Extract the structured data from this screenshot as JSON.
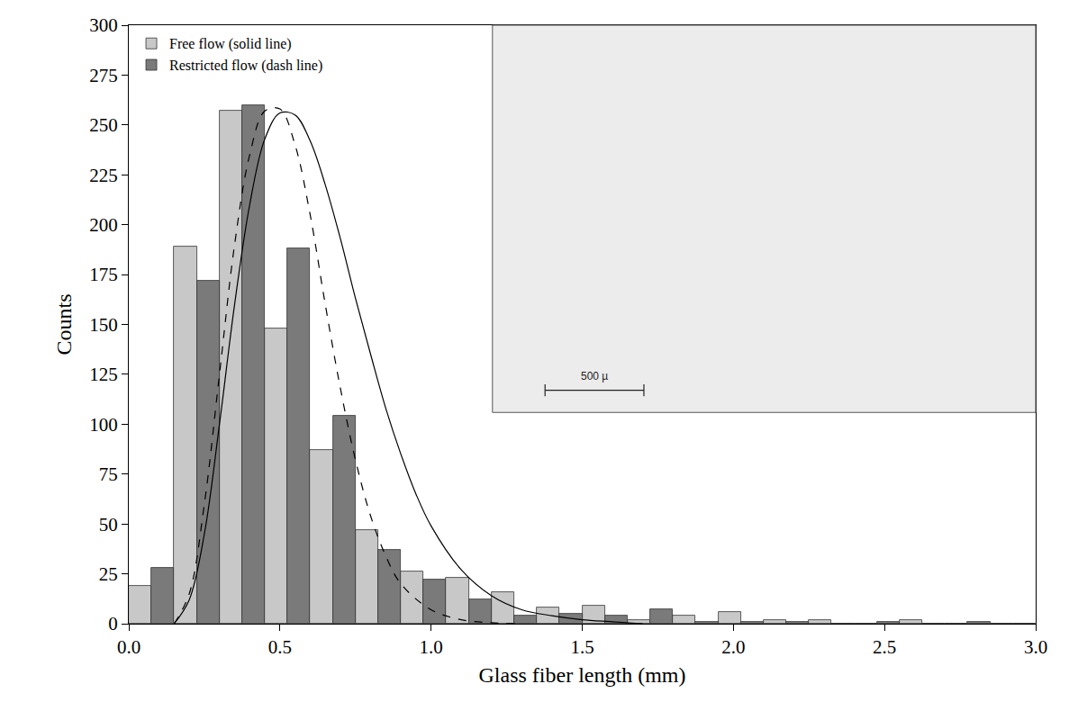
{
  "chart_data": {
    "type": "bar",
    "x_label": "Glass fiber length (mm)",
    "y_label": "Counts",
    "bins": [
      0,
      0.15,
      0.3,
      0.45,
      0.6,
      0.75,
      0.9,
      1.05,
      1.2,
      1.35,
      1.5,
      1.65,
      1.8,
      1.95,
      2.1,
      2.25,
      2.4,
      2.55,
      2.7,
      2.85,
      3.0
    ],
    "series": [
      {
        "name": "Free flow (solid line)",
        "type": "bar",
        "color": "#c8c8c8",
        "values": [
          19,
          189,
          257,
          148,
          87,
          47,
          26,
          23,
          16,
          8,
          9,
          2,
          4,
          6,
          2,
          2,
          0,
          2,
          0,
          0
        ]
      },
      {
        "name": "Restricted flow (dash line)",
        "type": "bar",
        "color": "#7a7a7a",
        "values": [
          28,
          172,
          260,
          188,
          104,
          37,
          22,
          12,
          4,
          5,
          4,
          7,
          1,
          1,
          1,
          0,
          1,
          0,
          1,
          0
        ]
      },
      {
        "type": "line",
        "color": "#000000",
        "line_style": "solid",
        "x": [
          0.15,
          0.2,
          0.25,
          0.3,
          0.35,
          0.4,
          0.45,
          0.5,
          0.55,
          0.6,
          0.65,
          0.7,
          0.75,
          0.8,
          0.85,
          0.9,
          0.95,
          1.0,
          1.1,
          1.2,
          1.3,
          1.4,
          1.5,
          1.6,
          1.7
        ],
        "values": [
          0,
          12,
          45,
          100,
          160,
          210,
          243,
          256,
          255,
          242,
          220,
          193,
          163,
          135,
          108,
          85,
          65,
          49,
          27,
          14,
          7,
          4,
          2,
          1,
          0
        ]
      },
      {
        "type": "line",
        "color": "#000000",
        "line_style": "dash",
        "x": [
          0.15,
          0.2,
          0.25,
          0.3,
          0.35,
          0.4,
          0.45,
          0.5,
          0.55,
          0.6,
          0.65,
          0.7,
          0.75,
          0.8,
          0.85,
          0.9,
          1.0,
          1.1,
          1.2,
          1.3
        ],
        "values": [
          0,
          15,
          60,
          125,
          190,
          235,
          257,
          258,
          240,
          205,
          160,
          118,
          82,
          54,
          34,
          20,
          7,
          2,
          0.5,
          0
        ]
      }
    ],
    "xlim": [
      0,
      3.0
    ],
    "xticks": [
      {
        "value": 0,
        "label": "0.0"
      },
      0.5,
      {
        "value": 1,
        "label": "1.0"
      },
      1.5,
      {
        "value": 2,
        "label": "2.0"
      },
      2.5,
      {
        "value": 3,
        "label": "3.0"
      }
    ],
    "ylim": [
      0,
      300
    ],
    "yticks": [
      0,
      25,
      50,
      75,
      100,
      125,
      150,
      175,
      200,
      225,
      250,
      275,
      300
    ],
    "legend": "top-left",
    "grid": false,
    "annotations": [
      {
        "text": "500 µ"
      }
    ]
  }
}
